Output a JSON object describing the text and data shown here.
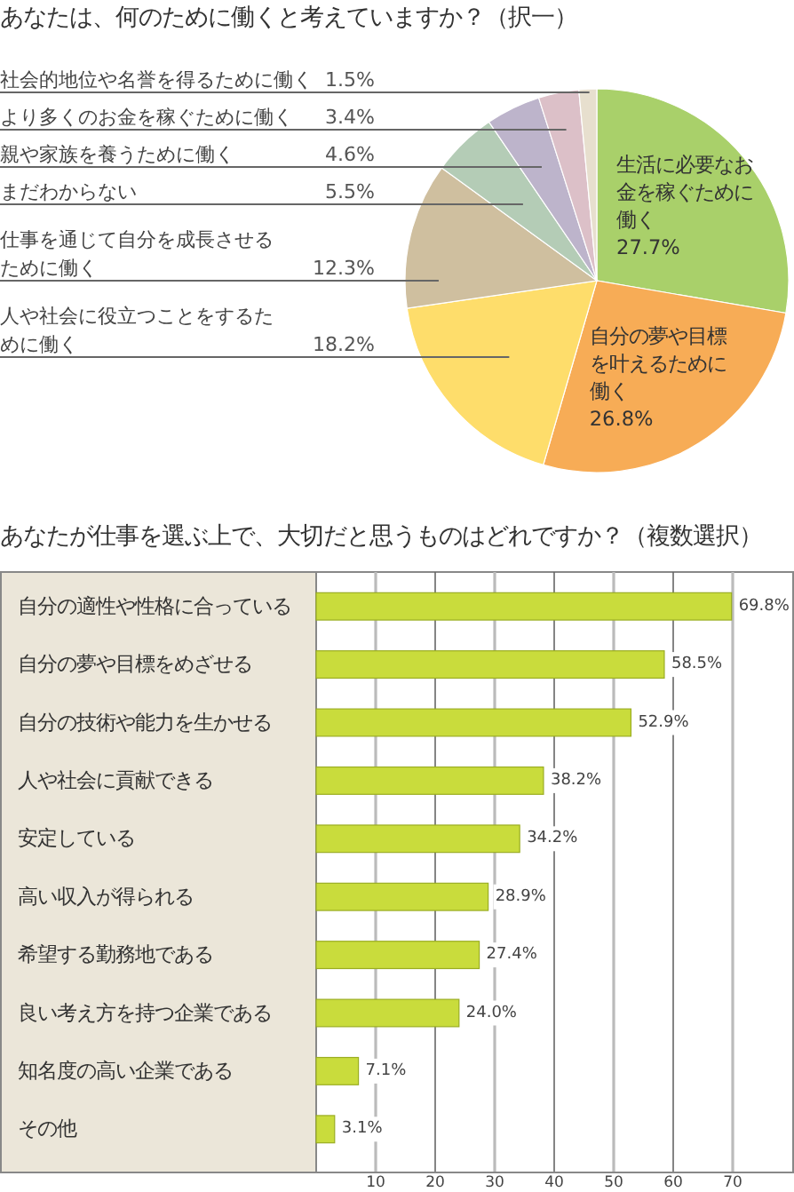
{
  "chart_data": [
    {
      "type": "pie",
      "title": "あなたは、何のために働くと考えていますか？（択一）",
      "categories": [
        "生活に必要なお金を稼ぐために働く",
        "自分の夢や目標を叶えるために働く",
        "人や社会に役立つことをするために働く",
        "仕事を通じて自分を成長させるために働く",
        "まだわからない",
        "親や家族を養うために働く",
        "より多くのお金を稼ぐために働く",
        "社会的地位や名誉を得るために働く"
      ],
      "values": [
        27.7,
        26.8,
        18.2,
        12.3,
        5.5,
        4.6,
        3.4,
        1.5
      ],
      "colors": [
        "#a9d06a",
        "#f7ac56",
        "#fedd6b",
        "#cfbf9f",
        "#b4ccb6",
        "#bdb4cb",
        "#dcc0c8",
        "#e7dfce"
      ],
      "value_labels": [
        "27.7%",
        "26.8%",
        "18.2%",
        "12.3%",
        "5.5%",
        "4.6%",
        "3.4%",
        "1.5%"
      ]
    },
    {
      "type": "bar",
      "orientation": "horizontal",
      "title": "あなたが仕事を選ぶ上で、大切だと思うものはどれですか？（複数選択）",
      "categories": [
        "自分の適性や性格に合っている",
        "自分の夢や目標をめざせる",
        "自分の技術や能力を生かせる",
        "人や社会に貢献できる",
        "安定している",
        "高い収入が得られる",
        "希望する勤務地である",
        "良い考え方を持つ企業である",
        "知名度の高い企業である",
        "その他"
      ],
      "values": [
        69.8,
        58.5,
        52.9,
        38.2,
        34.2,
        28.9,
        27.4,
        24.0,
        7.1,
        3.1
      ],
      "color": "#c9dc3c",
      "xlim": [
        0,
        80
      ],
      "xticks": [
        10,
        20,
        30,
        40,
        50,
        60,
        70
      ],
      "grid": "x",
      "value_labels": [
        "69.8%",
        "58.5%",
        "52.9%",
        "38.2%",
        "34.2%",
        "28.9%",
        "27.4%",
        "24.0%",
        "7.1%",
        "3.1%"
      ]
    }
  ]
}
